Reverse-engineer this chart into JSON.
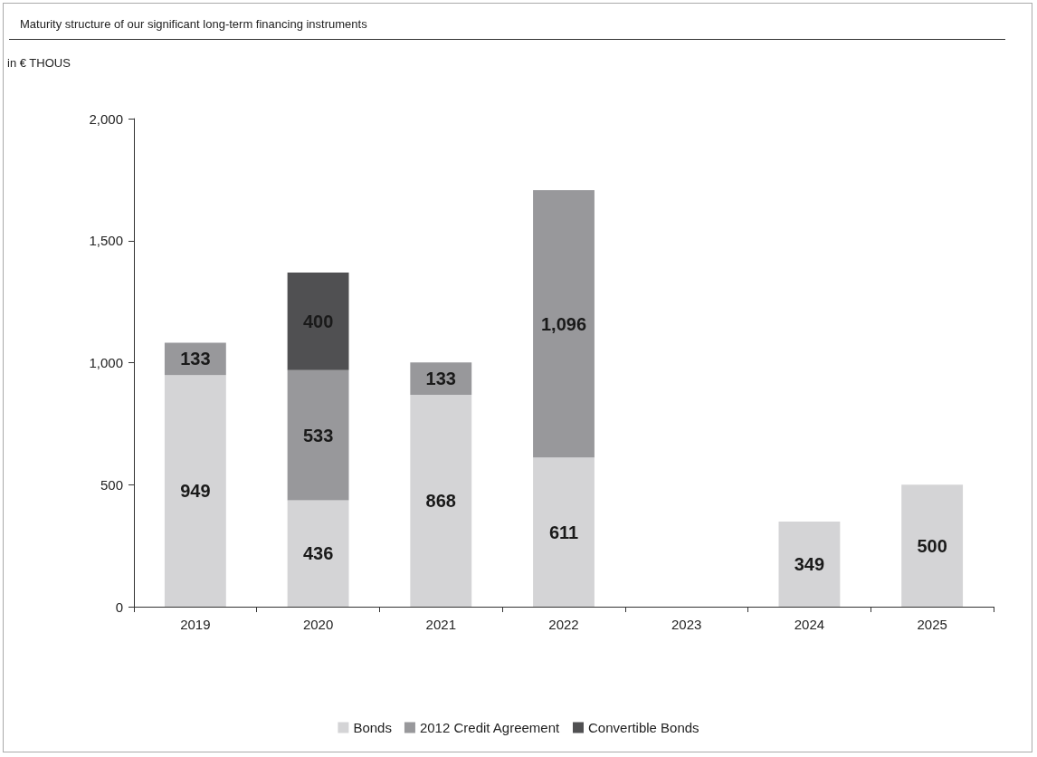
{
  "chart_data": {
    "type": "bar",
    "title": "Maturity structure of our significant long-term financing instruments",
    "ylabel": "in € THOUS",
    "categories": [
      "2019",
      "2020",
      "2021",
      "2022",
      "2023",
      "2024",
      "2025"
    ],
    "series": [
      {
        "name": "Bonds",
        "color": "#d4d4d6",
        "values": [
          949,
          436,
          868,
          611,
          null,
          349,
          500
        ],
        "value_labels": [
          "949",
          "436",
          "868",
          "611",
          null,
          "349",
          "500"
        ]
      },
      {
        "name": "2012 Credit Agreement",
        "color": "#98989b",
        "values": [
          133,
          533,
          133,
          1096,
          null,
          null,
          null
        ],
        "value_labels": [
          "133",
          "533",
          "133",
          "1,096",
          null,
          null,
          null
        ]
      },
      {
        "name": "Convertible Bonds",
        "color": "#505052",
        "values": [
          null,
          400,
          null,
          null,
          null,
          null,
          null
        ],
        "value_labels": [
          null,
          "400",
          null,
          null,
          null,
          null,
          null
        ]
      }
    ],
    "stacked": true,
    "ylim": [
      0,
      2000
    ],
    "yticks": [
      0,
      500,
      {
        "value": 1000,
        "label": "1,000"
      },
      {
        "value": 1500,
        "label": "1,500"
      },
      {
        "value": 2000,
        "label": "2,000"
      }
    ],
    "grid": false,
    "legend": "bottom"
  }
}
